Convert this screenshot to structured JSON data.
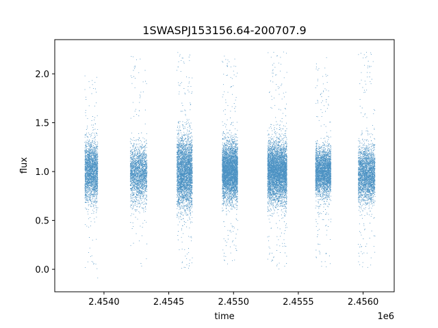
{
  "chart_data": {
    "type": "scatter",
    "title": "1SWASPJ153156.64-200707.9",
    "xlabel": "time",
    "ylabel": "flux",
    "x_offset_label": "1e6",
    "xlim": [
      2.45362,
      2.45624
    ],
    "ylim": [
      -0.23,
      2.35
    ],
    "x_ticks": [
      2.454,
      2.4545,
      2.455,
      2.4555,
      2.456
    ],
    "x_tick_labels": [
      "2.4540",
      "2.4545",
      "2.4550",
      "2.4555",
      "2.4560"
    ],
    "y_ticks": [
      0.0,
      0.5,
      1.0,
      1.5,
      2.0
    ],
    "y_tick_labels": [
      "0.0",
      "0.5",
      "1.0",
      "1.5",
      "2.0"
    ],
    "grid": false,
    "marker_color": "#1f77b4",
    "series": [
      {
        "clusters": [
          {
            "x_start": 2.45385,
            "x_end": 2.45395,
            "center": 1.0,
            "spread": 0.3,
            "ymin": -0.12,
            "ymax": 2.05,
            "points": 2400
          },
          {
            "x_start": 2.4542,
            "x_end": 2.45433,
            "center": 0.98,
            "spread": 0.28,
            "ymin": 0.03,
            "ymax": 2.22,
            "points": 2100
          },
          {
            "x_start": 2.45456,
            "x_end": 2.45468,
            "center": 1.0,
            "spread": 0.36,
            "ymin": 0.0,
            "ymax": 2.24,
            "points": 3500
          },
          {
            "x_start": 2.45491,
            "x_end": 2.45503,
            "center": 1.0,
            "spread": 0.28,
            "ymin": 0.05,
            "ymax": 2.2,
            "points": 4500
          },
          {
            "x_start": 2.45526,
            "x_end": 2.45541,
            "center": 1.0,
            "spread": 0.3,
            "ymin": 0.0,
            "ymax": 2.24,
            "points": 5000
          },
          {
            "x_start": 2.45563,
            "x_end": 2.45575,
            "center": 1.0,
            "spread": 0.24,
            "ymin": 0.02,
            "ymax": 2.18,
            "points": 3200
          },
          {
            "x_start": 2.45596,
            "x_end": 2.45609,
            "center": 0.97,
            "spread": 0.27,
            "ymin": 0.0,
            "ymax": 2.24,
            "points": 2800
          }
        ]
      }
    ]
  }
}
